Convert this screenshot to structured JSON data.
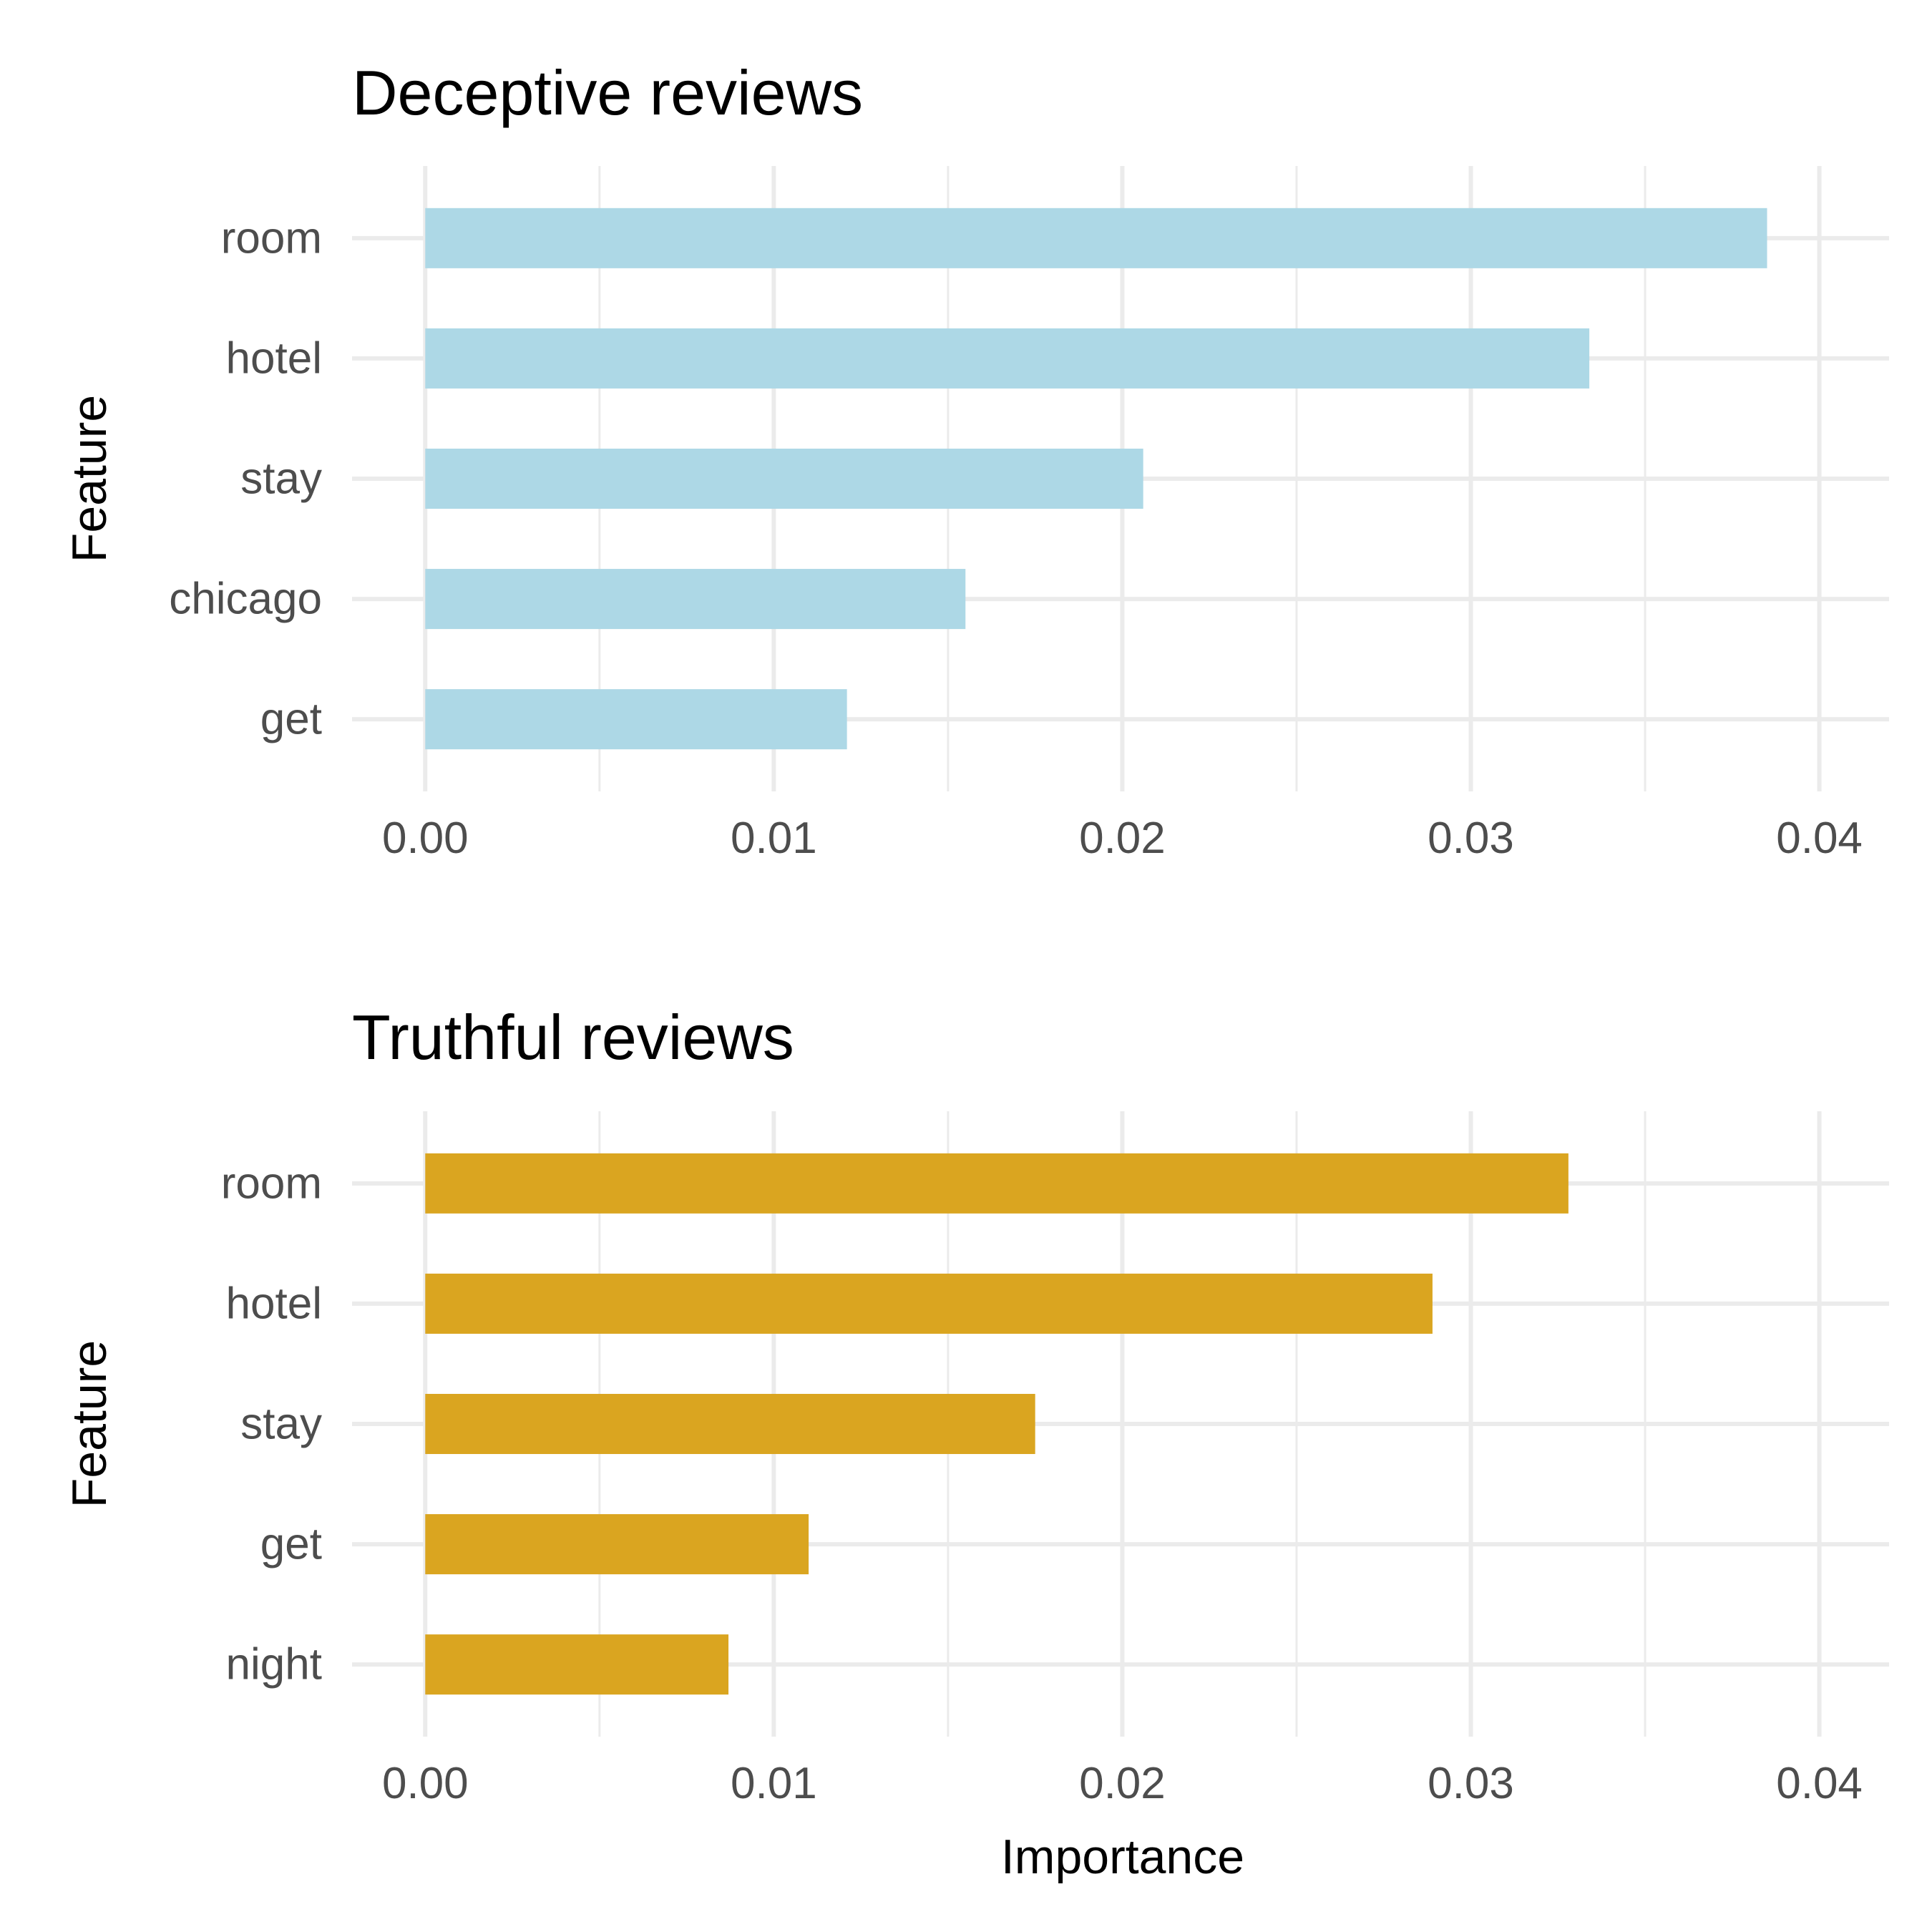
{
  "chart_data": [
    {
      "type": "bar",
      "orientation": "horizontal",
      "title": "Deceptive reviews",
      "xlabel": "",
      "ylabel": "Feature",
      "categories": [
        "room",
        "hotel",
        "stay",
        "chicago",
        "get"
      ],
      "values": [
        0.0385,
        0.0334,
        0.0206,
        0.0155,
        0.0121
      ],
      "xlim": [
        -0.0021,
        0.042
      ],
      "xticks": [
        0.0,
        0.01,
        0.02,
        0.03,
        0.04
      ],
      "xtick_labels": [
        "0.00",
        "0.01",
        "0.02",
        "0.03",
        "0.04"
      ],
      "grid": true,
      "bar_color": "#add8e6"
    },
    {
      "type": "bar",
      "orientation": "horizontal",
      "title": "Truthful reviews",
      "xlabel": "Importance",
      "ylabel": "Feature",
      "categories": [
        "room",
        "hotel",
        "stay",
        "get",
        "night"
      ],
      "values": [
        0.0328,
        0.0289,
        0.0175,
        0.011,
        0.0087
      ],
      "xlim": [
        -0.0021,
        0.042
      ],
      "xticks": [
        0.0,
        0.01,
        0.02,
        0.03,
        0.04
      ],
      "xtick_labels": [
        "0.00",
        "0.01",
        "0.02",
        "0.03",
        "0.04"
      ],
      "grid": true,
      "bar_color": "#daa520"
    }
  ]
}
